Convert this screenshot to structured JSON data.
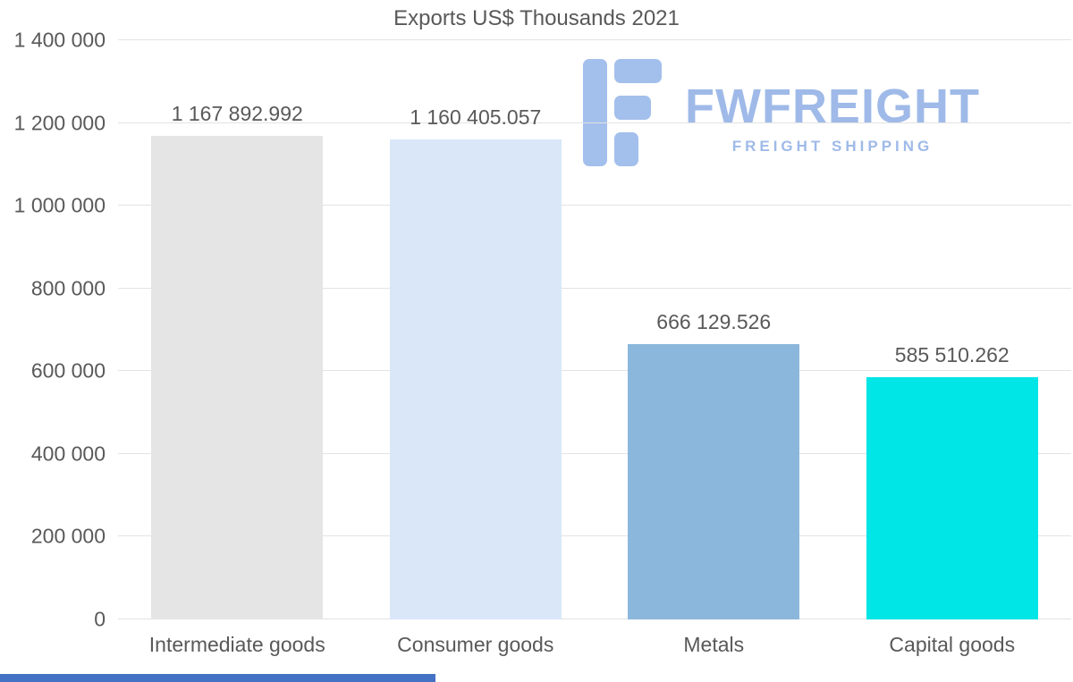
{
  "title": "Exports US$ Thousands 2021",
  "watermark": {
    "brand": "FWFREIGHT",
    "tagline": "FREIGHT SHIPPING",
    "icon": "fwfreight-logo",
    "color": "#9fbae8"
  },
  "chart_data": {
    "type": "bar",
    "title": "Exports US$ Thousands 2021",
    "categories": [
      "Intermediate goods",
      "Consumer goods",
      "Metals",
      "Capital goods"
    ],
    "values": [
      1167892.992,
      1160405.057,
      666129.526,
      585510.262
    ],
    "value_labels": [
      "1 167 892.992",
      "1 160 405.057",
      "666 129.526",
      "585 510.262"
    ],
    "bar_colors": [
      "#e5e5e5",
      "#d9e7f9",
      "#8cb7dc",
      "#00e5e6"
    ],
    "ylim": [
      0,
      1400000
    ],
    "yticks": [
      0,
      200000,
      400000,
      600000,
      800000,
      1000000,
      1200000,
      1400000
    ],
    "ytick_labels": [
      "0",
      "200 000",
      "400 000",
      "600 000",
      "800 000",
      "1 000 000",
      "1 200 000",
      "1 400 000"
    ],
    "xlabel": "",
    "ylabel": "",
    "grid": true,
    "legend": false
  },
  "colors": {
    "background": "#ffffff",
    "grid": "#e3e3e3",
    "text": "#595959",
    "watermark": "#9fbae8",
    "bottom_accent": "#4472c4"
  }
}
